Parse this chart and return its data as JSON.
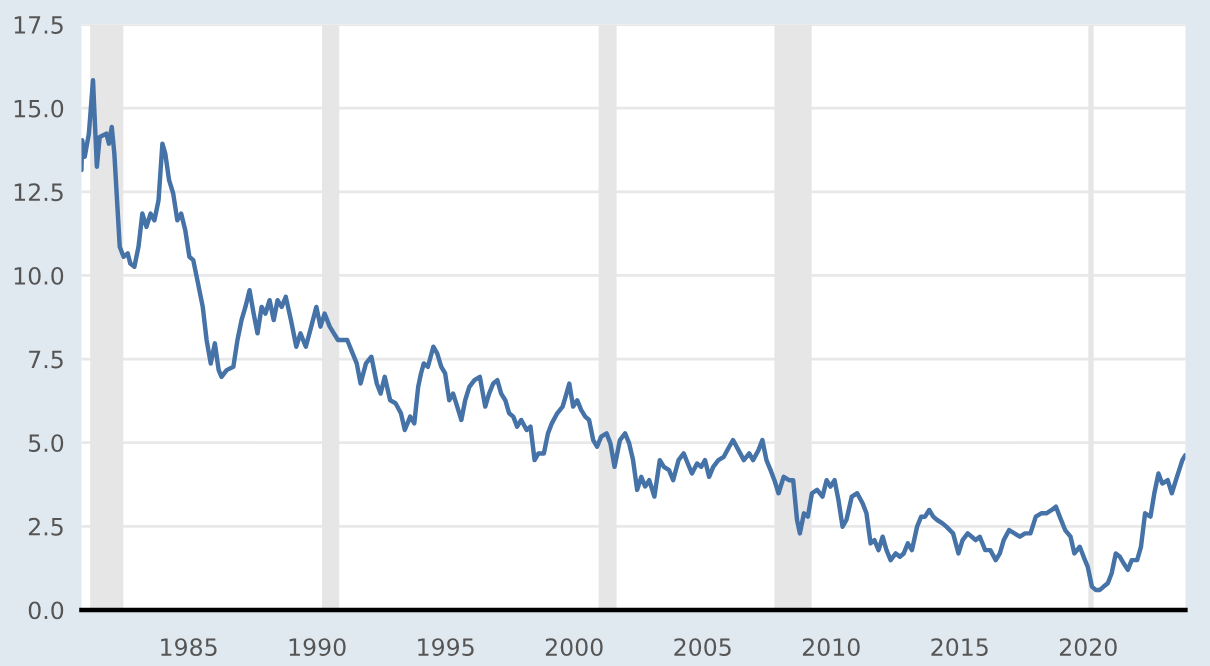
{
  "chart_data": {
    "type": "line",
    "x": [
      1980.83,
      1980.86,
      1980.96,
      1981.12,
      1981.28,
      1981.43,
      1981.54,
      1981.8,
      1981.9,
      1982.01,
      1982.11,
      1982.32,
      1982.47,
      1982.63,
      1982.73,
      1982.89,
      1983.05,
      1983.2,
      1983.36,
      1983.52,
      1983.67,
      1983.83,
      1983.98,
      1984.09,
      1984.24,
      1984.4,
      1984.56,
      1984.71,
      1984.87,
      1985.03,
      1985.18,
      1985.34,
      1985.55,
      1985.7,
      1985.86,
      1986.02,
      1986.17,
      1986.28,
      1986.48,
      1986.74,
      1986.9,
      1987.06,
      1987.21,
      1987.37,
      1987.53,
      1987.68,
      1987.84,
      1987.99,
      1988.15,
      1988.31,
      1988.46,
      1988.62,
      1988.78,
      1988.98,
      1989.19,
      1989.35,
      1989.56,
      1989.77,
      1989.97,
      1990.13,
      1990.29,
      1990.49,
      1990.65,
      1990.81,
      1991.17,
      1991.38,
      1991.54,
      1991.69,
      1991.9,
      1992.11,
      1992.32,
      1992.47,
      1992.63,
      1992.84,
      1993.05,
      1993.26,
      1993.41,
      1993.62,
      1993.78,
      1993.93,
      1994.04,
      1994.15,
      1994.31,
      1994.52,
      1994.67,
      1994.83,
      1994.98,
      1995.14,
      1995.29,
      1995.45,
      1995.61,
      1995.76,
      1995.92,
      1996.12,
      1996.33,
      1996.54,
      1996.69,
      1996.85,
      1997.01,
      1997.16,
      1997.32,
      1997.47,
      1997.63,
      1997.78,
      1997.94,
      1998.15,
      1998.3,
      1998.46,
      1998.61,
      1998.82,
      1998.98,
      1999.13,
      1999.34,
      1999.55,
      1999.7,
      1999.81,
      1999.96,
      2000.12,
      2000.27,
      2000.43,
      2000.58,
      2000.74,
      2000.89,
      2001.05,
      2001.26,
      2001.41,
      2001.57,
      2001.78,
      2001.98,
      2002.14,
      2002.29,
      2002.45,
      2002.61,
      2002.76,
      2002.92,
      2003.12,
      2003.33,
      2003.49,
      2003.69,
      2003.85,
      2004.06,
      2004.26,
      2004.42,
      2004.58,
      2004.78,
      2004.94,
      2005.09,
      2005.25,
      2005.41,
      2005.61,
      2005.82,
      2006.03,
      2006.18,
      2006.39,
      2006.6,
      2006.81,
      2006.96,
      2007.17,
      2007.32,
      2007.48,
      2007.64,
      2007.79,
      2007.95,
      2008.15,
      2008.36,
      2008.52,
      2008.67,
      2008.78,
      2008.94,
      2009.09,
      2009.25,
      2009.45,
      2009.66,
      2009.82,
      2009.97,
      2010.13,
      2010.28,
      2010.44,
      2010.59,
      2010.8,
      2011.01,
      2011.22,
      2011.37,
      2011.53,
      2011.68,
      2011.84,
      2012.0,
      2012.15,
      2012.31,
      2012.51,
      2012.67,
      2012.82,
      2012.98,
      2013.14,
      2013.34,
      2013.5,
      2013.65,
      2013.81,
      2013.97,
      2014.12,
      2014.33,
      2014.48,
      2014.74,
      2014.95,
      2015.11,
      2015.31,
      2015.47,
      2015.62,
      2015.78,
      2015.99,
      2016.19,
      2016.4,
      2016.56,
      2016.71,
      2016.92,
      2017.13,
      2017.34,
      2017.54,
      2017.75,
      2017.96,
      2018.17,
      2018.37,
      2018.58,
      2018.74,
      2018.89,
      2019.1,
      2019.31,
      2019.46,
      2019.67,
      2019.82,
      2019.98,
      2020.14,
      2020.29,
      2020.45,
      2020.6,
      2020.76,
      2020.91,
      2021.07,
      2021.23,
      2021.38,
      2021.54,
      2021.69,
      2021.9,
      2022.05,
      2022.21,
      2022.42,
      2022.57,
      2022.73,
      2022.88,
      2023.09,
      2023.25,
      2023.45,
      2023.66,
      2023.77
    ],
    "series": [
      {
        "color": "#4572a7",
        "values": [
          13.15,
          14.04,
          13.55,
          14.24,
          15.84,
          13.25,
          14.14,
          14.24,
          13.94,
          14.44,
          13.65,
          10.86,
          10.56,
          10.66,
          10.36,
          10.26,
          10.86,
          11.85,
          11.45,
          11.85,
          11.65,
          12.25,
          13.94,
          13.65,
          12.85,
          12.45,
          11.65,
          11.85,
          11.35,
          10.56,
          10.46,
          9.86,
          9.06,
          8.07,
          7.37,
          7.97,
          7.17,
          6.97,
          7.17,
          7.27,
          8.07,
          8.67,
          9.06,
          9.56,
          8.86,
          8.27,
          9.06,
          8.86,
          9.26,
          8.67,
          9.26,
          9.06,
          9.36,
          8.67,
          7.87,
          8.27,
          7.87,
          8.47,
          9.06,
          8.47,
          8.86,
          8.47,
          8.27,
          8.07,
          8.07,
          7.67,
          7.37,
          6.77,
          7.37,
          7.57,
          6.77,
          6.47,
          6.97,
          6.27,
          6.18,
          5.88,
          5.38,
          5.78,
          5.58,
          6.67,
          7.07,
          7.37,
          7.27,
          7.87,
          7.67,
          7.27,
          7.07,
          6.27,
          6.47,
          6.08,
          5.68,
          6.27,
          6.67,
          6.87,
          6.97,
          6.08,
          6.47,
          6.77,
          6.87,
          6.47,
          6.27,
          5.88,
          5.78,
          5.48,
          5.68,
          5.38,
          5.48,
          4.48,
          4.68,
          4.68,
          5.28,
          5.58,
          5.88,
          6.08,
          6.47,
          6.77,
          6.08,
          6.27,
          5.98,
          5.78,
          5.68,
          5.08,
          4.88,
          5.18,
          5.28,
          4.98,
          4.28,
          5.08,
          5.28,
          4.98,
          4.48,
          3.59,
          3.98,
          3.69,
          3.88,
          3.39,
          4.48,
          4.28,
          4.18,
          3.88,
          4.48,
          4.68,
          4.38,
          4.08,
          4.38,
          4.28,
          4.48,
          3.98,
          4.28,
          4.48,
          4.58,
          4.88,
          5.08,
          4.78,
          4.48,
          4.68,
          4.48,
          4.78,
          5.08,
          4.48,
          4.18,
          3.88,
          3.49,
          3.98,
          3.88,
          3.88,
          2.69,
          2.29,
          2.89,
          2.79,
          3.49,
          3.59,
          3.39,
          3.88,
          3.69,
          3.88,
          3.29,
          2.49,
          2.69,
          3.39,
          3.49,
          3.19,
          2.89,
          1.99,
          2.09,
          1.79,
          2.19,
          1.79,
          1.49,
          1.69,
          1.59,
          1.69,
          1.99,
          1.79,
          2.49,
          2.79,
          2.79,
          2.99,
          2.79,
          2.69,
          2.59,
          2.49,
          2.29,
          1.69,
          2.09,
          2.29,
          2.19,
          2.09,
          2.19,
          1.79,
          1.79,
          1.49,
          1.69,
          2.09,
          2.39,
          2.29,
          2.19,
          2.29,
          2.29,
          2.79,
          2.89,
          2.89,
          2.99,
          3.09,
          2.79,
          2.39,
          2.19,
          1.69,
          1.89,
          1.59,
          1.29,
          0.7,
          0.6,
          0.6,
          0.7,
          0.8,
          1.1,
          1.69,
          1.59,
          1.39,
          1.2,
          1.49,
          1.49,
          1.89,
          2.89,
          2.79,
          3.49,
          4.08,
          3.78,
          3.88,
          3.49,
          3.98,
          4.48,
          4.62
        ]
      }
    ],
    "xlim": [
      1980.83,
      2023.78
    ],
    "xticks": [
      1985,
      1990,
      1995,
      2000,
      2005,
      2010,
      2015,
      2020
    ],
    "ylim": [
      0,
      17.5
    ],
    "yticks": [
      {
        "value": 0,
        "label": "0.0"
      },
      {
        "value": 2.5,
        "label": "2.5"
      },
      {
        "value": 5,
        "label": "5.0"
      },
      {
        "value": 7.5,
        "label": "7.5"
      },
      {
        "value": 10,
        "label": "10.0"
      },
      {
        "value": 12.5,
        "label": "12.5"
      },
      {
        "value": 15,
        "label": "15.0"
      },
      {
        "value": 17.5,
        "label": "17.5"
      }
    ],
    "bands": [
      {
        "axis": "x",
        "from": 1981.17,
        "to": 1982.46,
        "color": "#e6e6e6"
      },
      {
        "axis": "x",
        "from": 1990.19,
        "to": 1990.86,
        "color": "#e6e6e6"
      },
      {
        "axis": "x",
        "from": 2000.95,
        "to": 2001.65,
        "color": "#e6e6e6"
      },
      {
        "axis": "x",
        "from": 2007.79,
        "to": 2009.24,
        "color": "#e6e6e6"
      },
      {
        "axis": "x",
        "from": 2020.0,
        "to": 2020.21,
        "color": "#e6e6e6"
      }
    ],
    "grid": "y",
    "line_style": "solid",
    "marker": "none"
  }
}
